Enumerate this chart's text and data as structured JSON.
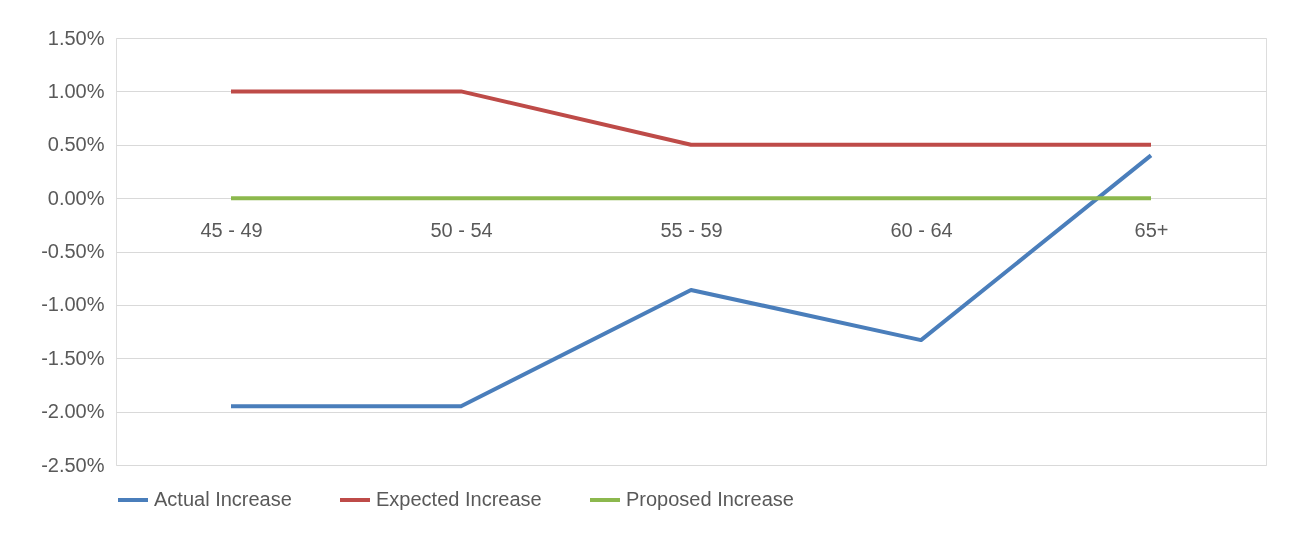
{
  "chart_data": {
    "type": "line",
    "categories": [
      "45 - 49",
      "50 - 54",
      "55 - 59",
      "60 - 64",
      "65+"
    ],
    "series": [
      {
        "name": "Actual Increase",
        "color": "#4a7ebb",
        "values": [
          -1.95,
          -1.95,
          -0.86,
          -1.33,
          0.4
        ]
      },
      {
        "name": "Expected Increase",
        "color": "#be4b48",
        "values": [
          1.0,
          1.0,
          0.5,
          0.5,
          0.5
        ]
      },
      {
        "name": "Proposed Increase",
        "color": "#8cb84d",
        "values": [
          0,
          0,
          0,
          0,
          0
        ]
      }
    ],
    "ylim": [
      -2.5,
      1.5
    ],
    "yticks": [
      {
        "value": 1.5,
        "label": "1.50%"
      },
      {
        "value": 1.0,
        "label": "1.00%"
      },
      {
        "value": 0.5,
        "label": "0.50%"
      },
      {
        "value": 0,
        "label": "0.00%"
      },
      {
        "value": -0.5,
        "label": "-0.50%"
      },
      {
        "value": -1.0,
        "label": "-1.00%"
      },
      {
        "value": -1.5,
        "label": "-1.50%"
      },
      {
        "value": -2.0,
        "label": "-2.00%"
      },
      {
        "value": -2.5,
        "label": "-2.50%"
      }
    ],
    "grid": "y",
    "legend": "bottom",
    "marker": "none",
    "line_style": "solid"
  }
}
